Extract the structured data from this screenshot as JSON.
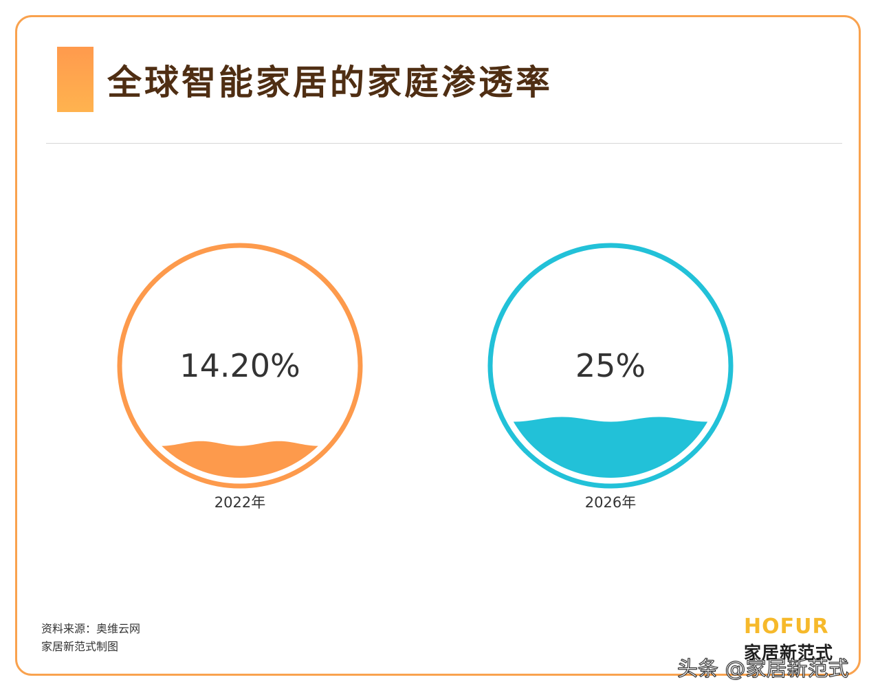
{
  "title": "全球智能家居的家庭渗透率",
  "source_line1": "资料来源：奥维云网",
  "source_line2": "家居新范式制图",
  "brand_en": "HOFUR",
  "brand_cn": "家居新范式",
  "watermark": "头条 @家居新范式",
  "colors": {
    "frame": "#f9a24e",
    "title_text": "#4f2e13",
    "orange": "#fd9a4c",
    "cyan": "#22c1d8"
  },
  "chart_data": {
    "type": "liquid-gauge",
    "title": "全球智能家居的家庭渗透率",
    "unit": "%",
    "max": 100,
    "items": [
      {
        "category": "2022年",
        "value": 14.2,
        "display": "14.20%",
        "color": "#fd9a4c"
      },
      {
        "category": "2026年",
        "value": 25,
        "display": "25%",
        "color": "#22c1d8"
      }
    ]
  }
}
